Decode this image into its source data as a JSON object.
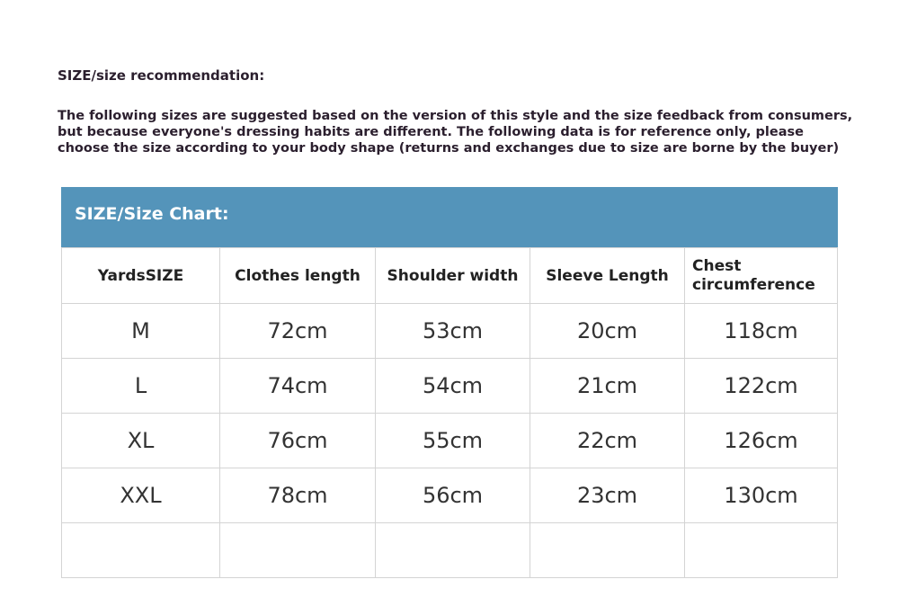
{
  "heading": "SIZE/size recommendation:",
  "description": [
    "The following sizes are suggested based on the version of this style and the size feedback from consumers,",
    "but because everyone's dressing habits are different. The following data is for reference only, please",
    "choose the size according to your body shape (returns and exchanges due to size are borne by the buyer)"
  ],
  "chart_title": "SIZE/Size Chart:",
  "header_color": "#5494ba",
  "columns": [
    "YardsSIZE",
    "Clothes length",
    "Shoulder width",
    "Sleeve Length",
    "Chest circumference"
  ],
  "rows": [
    [
      "M",
      "72cm",
      "53cm",
      "20cm",
      "118cm"
    ],
    [
      "L",
      "74cm",
      "54cm",
      "21cm",
      "122cm"
    ],
    [
      "XL",
      "76cm",
      "55cm",
      "22cm",
      "126cm"
    ],
    [
      "XXL",
      "78cm",
      "56cm",
      "23cm",
      "130cm"
    ],
    [
      "",
      "",
      "",
      "",
      ""
    ]
  ]
}
